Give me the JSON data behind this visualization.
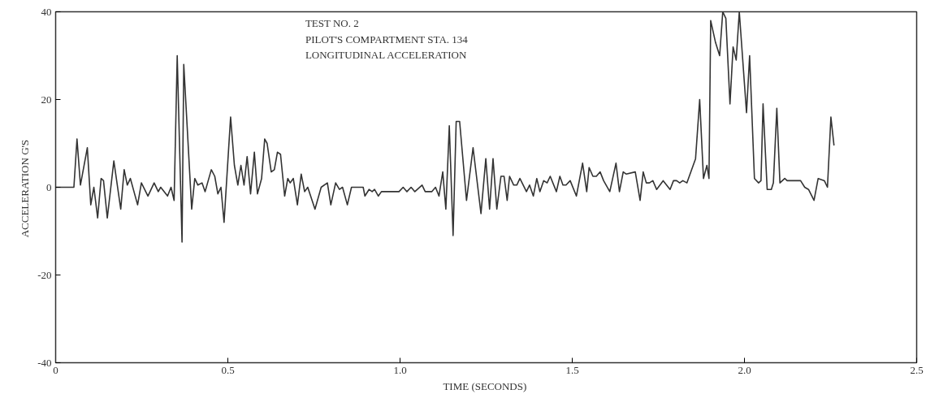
{
  "chart_data": {
    "type": "line",
    "xlabel": "TIME  (SECONDS)",
    "ylabel": "ACCELERATION  G'S",
    "annotations": [
      "TEST NO. 2",
      "PILOT'S COMPARTMENT STA. 134",
      "LONGITUDINAL ACCELERATION"
    ],
    "xlim": [
      0,
      2.5
    ],
    "ylim": [
      -40,
      40
    ],
    "xticks": [
      0,
      0.5,
      {
        "value": 1,
        "label": "1.0"
      },
      1.5,
      {
        "value": 2,
        "label": "2.0"
      },
      2.5
    ],
    "yticks": [
      -40,
      -20,
      0,
      20,
      40
    ],
    "grid": false,
    "marker": "none",
    "line_style": "solid",
    "series": [
      {
        "color": "#333333",
        "x": [
          0,
          0.053,
          0.062,
          0.072,
          0.092,
          0.102,
          0.111,
          0.122,
          0.132,
          0.139,
          0.15,
          0.169,
          0.189,
          0.199,
          0.208,
          0.217,
          0.238,
          0.249,
          0.268,
          0.286,
          0.298,
          0.305,
          0.325,
          0.335,
          0.344,
          0.353,
          0.367,
          0.372,
          0.395,
          0.404,
          0.413,
          0.425,
          0.434,
          0.452,
          0.462,
          0.471,
          0.48,
          0.489,
          0.508,
          0.519,
          0.529,
          0.538,
          0.547,
          0.556,
          0.566,
          0.577,
          0.586,
          0.598,
          0.607,
          0.614,
          0.626,
          0.635,
          0.644,
          0.653,
          0.665,
          0.674,
          0.681,
          0.69,
          0.702,
          0.713,
          0.723,
          0.732,
          0.753,
          0.771,
          0.789,
          0.799,
          0.813,
          0.824,
          0.833,
          0.847,
          0.859,
          0.893,
          0.898,
          0.91,
          0.919,
          0.926,
          0.937,
          0.946,
          0.997,
          1.009,
          1.02,
          1.032,
          1.043,
          1.064,
          1.073,
          1.092,
          1.103,
          1.113,
          1.124,
          1.133,
          1.143,
          1.154,
          1.163,
          1.173,
          1.193,
          1.212,
          1.235,
          1.249,
          1.26,
          1.27,
          1.281,
          1.293,
          1.302,
          1.311,
          1.318,
          1.33,
          1.339,
          1.348,
          1.367,
          1.376,
          1.387,
          1.397,
          1.406,
          1.417,
          1.427,
          1.436,
          1.454,
          1.464,
          1.473,
          1.482,
          1.494,
          1.512,
          1.53,
          1.542,
          1.549,
          1.56,
          1.57,
          1.581,
          1.591,
          1.609,
          1.627,
          1.637,
          1.648,
          1.657,
          1.683,
          1.697,
          1.706,
          1.715,
          1.724,
          1.734,
          1.745,
          1.764,
          1.784,
          1.794,
          1.803,
          1.812,
          1.821,
          1.833,
          1.858,
          1.87,
          1.881,
          1.891,
          1.897,
          1.902,
          1.916,
          1.928,
          1.937,
          1.946,
          1.958,
          1.967,
          1.976,
          1.985,
          2.006,
          2.015,
          2.029,
          2.041,
          2.048,
          2.054,
          2.066,
          2.078,
          2.084,
          2.094,
          2.103,
          2.117,
          2.124,
          2.163,
          2.175,
          2.186,
          2.202,
          2.214,
          2.232,
          2.241,
          2.251,
          2.26
        ],
        "values": [
          0,
          0,
          11,
          0.5,
          9,
          -4,
          0,
          -7,
          2,
          1.5,
          -7,
          6,
          -5,
          4,
          0.5,
          2,
          -4,
          1,
          -2,
          1,
          -1,
          0,
          -2,
          0,
          -3,
          30,
          -12.5,
          28,
          -5,
          2,
          0.5,
          1,
          -1,
          4,
          2.5,
          -1.5,
          0,
          -8,
          16,
          5,
          0.5,
          5,
          0.5,
          7,
          -1.5,
          8,
          -1.5,
          2,
          11,
          10,
          3.5,
          4,
          8,
          7.5,
          -2,
          2,
          1,
          2,
          -4,
          3,
          -1,
          0,
          -5,
          0,
          1,
          -4,
          1,
          -0.5,
          0,
          -4,
          0,
          0,
          -2,
          -0.5,
          -1,
          -0.5,
          -2,
          -1,
          -1,
          0,
          -1,
          0,
          -1,
          0.5,
          -1,
          -1,
          0,
          -2,
          3.5,
          -5,
          14,
          -11,
          15,
          15,
          -3,
          9,
          -6,
          6.5,
          -5,
          6.5,
          -5,
          2.5,
          2.5,
          -3,
          2.5,
          0.5,
          0.5,
          2,
          -1,
          0.5,
          -2,
          2,
          -1,
          1.5,
          1,
          2.5,
          -1,
          2.5,
          0.5,
          0.5,
          1.5,
          -2,
          5.5,
          -1,
          4.5,
          2.5,
          2.5,
          3.5,
          1.5,
          -1,
          5.5,
          -1,
          3.5,
          3,
          3.5,
          -3,
          3.5,
          1,
          1,
          1.5,
          -0.5,
          1.5,
          -0.5,
          1.5,
          1.5,
          1,
          1.5,
          1,
          6.5,
          20,
          2,
          5,
          2,
          38,
          33,
          30,
          40,
          38.5,
          19,
          32,
          29,
          40,
          17,
          30,
          2,
          1,
          1.5,
          19,
          -0.5,
          -0.5,
          1,
          18,
          1,
          2,
          1.5,
          1.5,
          0,
          -0.5,
          -3,
          2,
          1.5,
          0,
          16,
          9.5
        ]
      }
    ]
  }
}
